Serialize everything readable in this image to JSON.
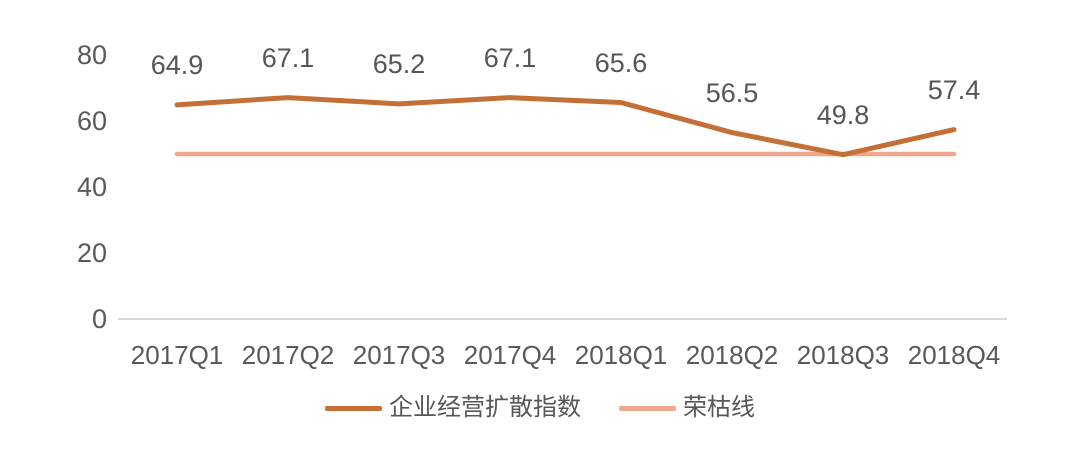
{
  "chart_data": {
    "type": "line",
    "title": "",
    "categories": [
      "2017Q1",
      "2017Q2",
      "2017Q3",
      "2017Q4",
      "2018Q1",
      "2018Q2",
      "2018Q3",
      "2018Q4"
    ],
    "series": [
      {
        "name": "企业经营扩散指数",
        "values": [
          64.9,
          67.1,
          65.2,
          67.1,
          65.6,
          56.5,
          49.8,
          57.4
        ],
        "color": "#C36F36",
        "stroke_width": 5
      },
      {
        "name": "荣枯线",
        "values": [
          50,
          50,
          50,
          50,
          50,
          50,
          50,
          50
        ],
        "color": "#EEA78C",
        "stroke_width": 4.5
      }
    ],
    "data_labels": [
      "64.9",
      "67.1",
      "65.2",
      "67.1",
      "65.6",
      "56.5",
      "49.8",
      "57.4"
    ],
    "data_labels_series": "企业经营扩散指数",
    "xlabel": "",
    "ylabel": "",
    "ylim": [
      0,
      80
    ],
    "yticks": [
      0,
      20,
      40,
      60,
      80
    ],
    "grid": false,
    "legend_position": "bottom"
  },
  "colors": {
    "diffusion_line": "#C36F36",
    "boom_bust_line": "#EEA78C",
    "axis_line": "#D9D9D9",
    "text": "#595959",
    "background": "#FFFFFF"
  }
}
